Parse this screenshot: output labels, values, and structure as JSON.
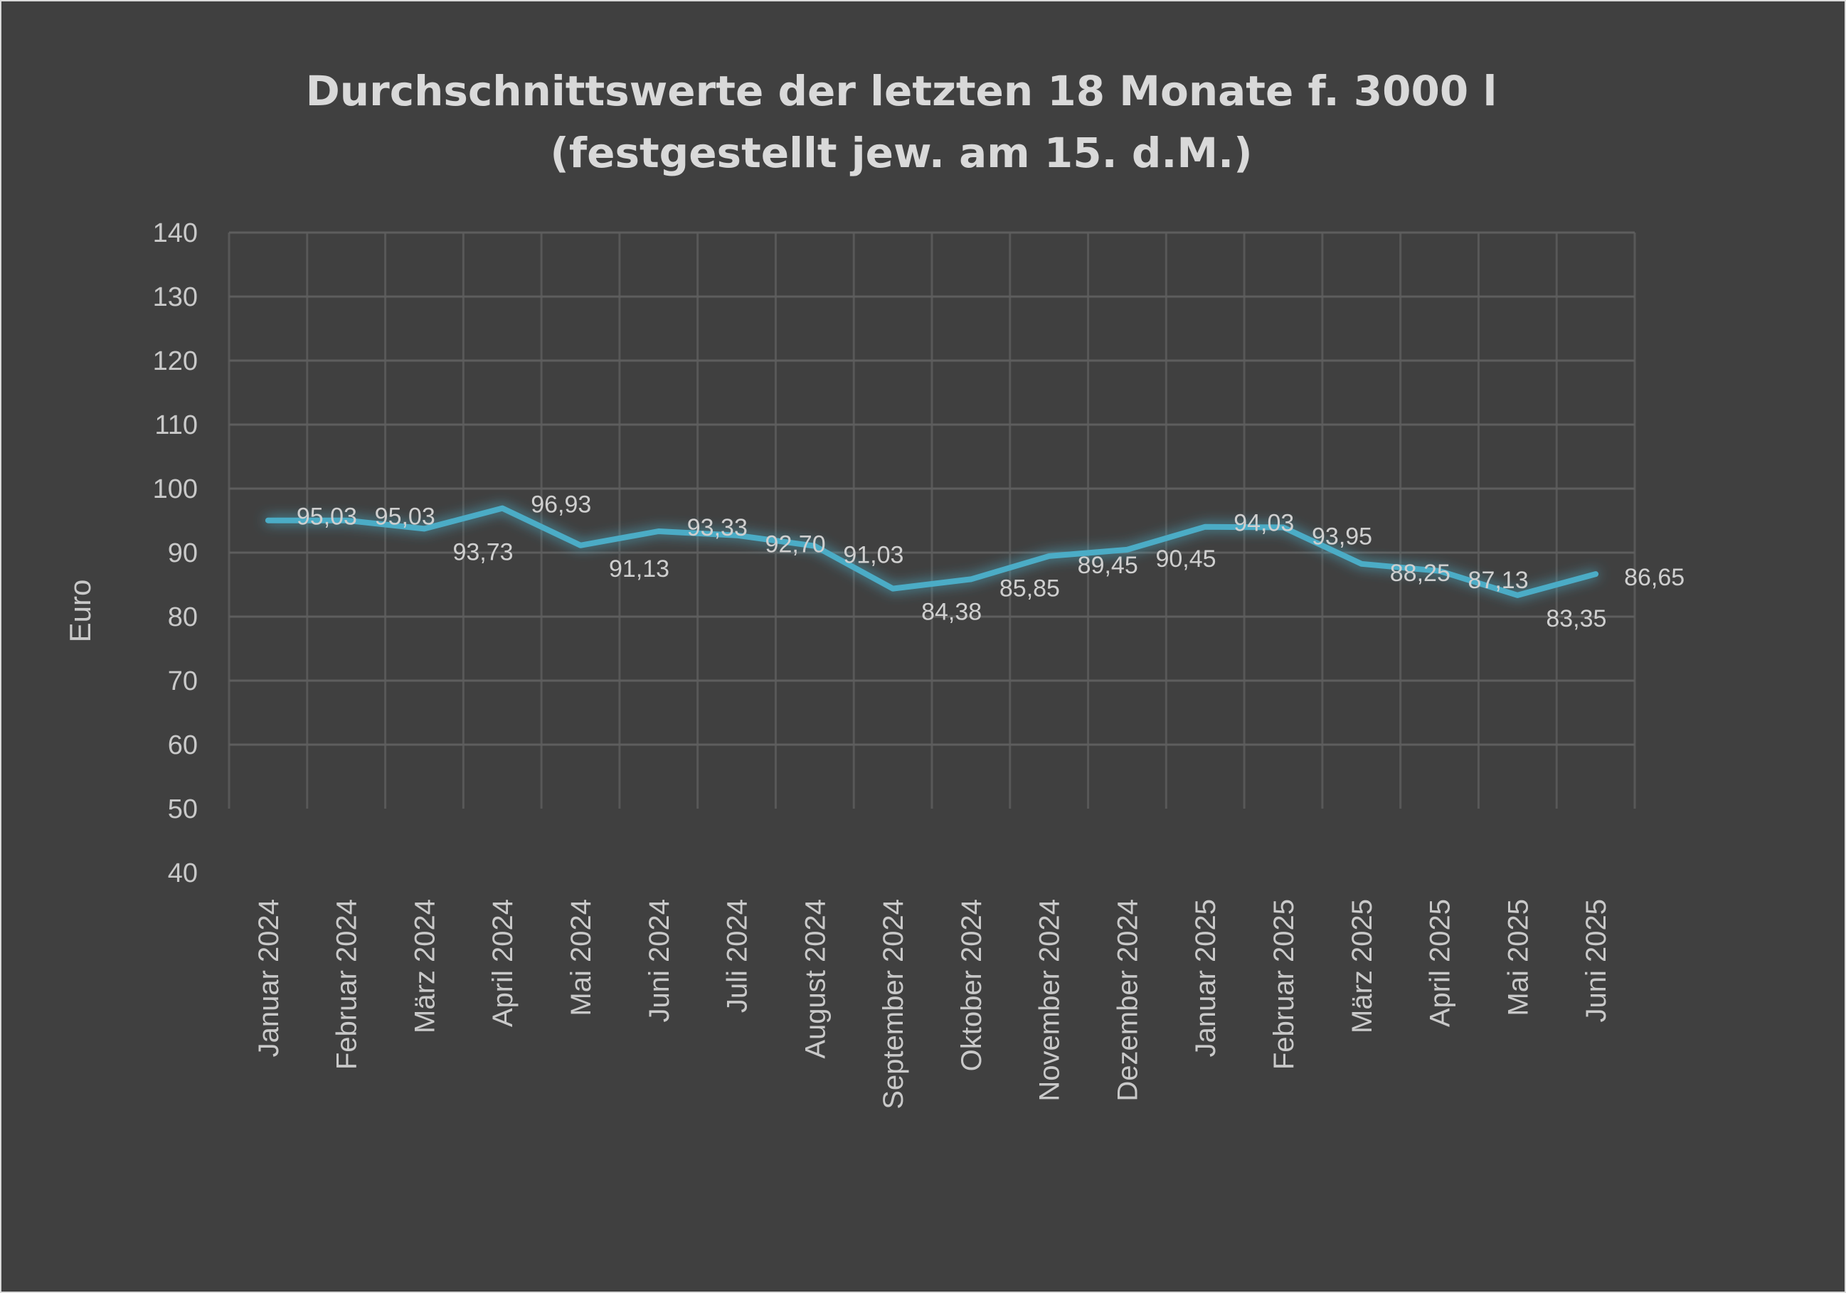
{
  "chart_data": {
    "type": "line",
    "title_line1": "Durchschnittswerte der letzten 18 Monate f. 3000 l",
    "title_line2": "(festgestellt jew. am 15. d.M.)",
    "xlabel": "",
    "ylabel": "Euro",
    "ylim": [
      40,
      140
    ],
    "ytick_step": 10,
    "yticks": [
      "40",
      "50",
      "60",
      "70",
      "80",
      "90",
      "100",
      "110",
      "120",
      "130",
      "140"
    ],
    "grid": true,
    "legend": "none",
    "categories": [
      "Januar 2024",
      "Februar 2024",
      "März 2024",
      "April 2024",
      "Mai 2024",
      "Juni 2024",
      "Juli 2024",
      "August 2024",
      "September 2024",
      "Oktober 2024",
      "November 2024",
      "Dezember 2024",
      "Januar 2025",
      "Februar 2025",
      "März 2025",
      "April 2025",
      "Mai 2025",
      "Juni 2025"
    ],
    "values": [
      95.03,
      95.03,
      93.73,
      96.93,
      91.13,
      93.33,
      92.7,
      91.03,
      84.38,
      85.85,
      89.45,
      90.45,
      94.03,
      93.95,
      88.25,
      87.13,
      83.35,
      86.65
    ],
    "data_labels": [
      "95,03",
      "95,03",
      "93,73",
      "96,93",
      "91,13",
      "93,33",
      "92,70",
      "91,03",
      "84,38",
      "85,85",
      "89,45",
      "90,45",
      "94,03",
      "93,95",
      "88,25",
      "87,13",
      "83,35",
      "86,65"
    ],
    "line_color": "#4bacc6",
    "background_color": "#404040",
    "grid_color": "#5e5e5e",
    "text_color": "#d9d9d9"
  }
}
